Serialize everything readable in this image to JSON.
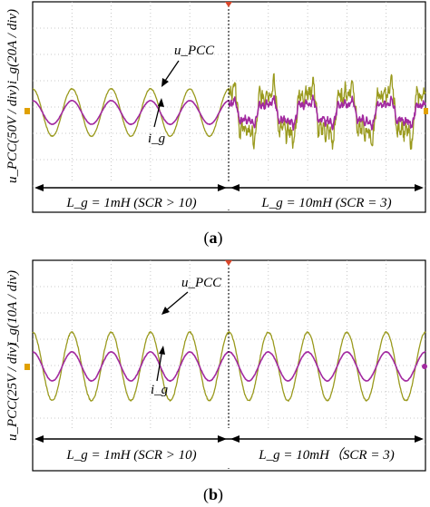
{
  "colors": {
    "voltage": "#9a9a1e",
    "current": "#a22aa0",
    "grid": "#b9b9b9",
    "marker_upper": "#e0a000",
    "marker_lower": "#d9462a",
    "frame": "#000000"
  },
  "chart_data": [
    {
      "type": "line",
      "panel": "(a)",
      "ylabel_left": "i_g(20A / div)",
      "ylabel_right": "u_PCC(50V / div)",
      "annotations": [
        "u_PCC",
        "i_g"
      ],
      "regions": [
        {
          "label": "L_g = 1mH (SCR > 10)",
          "x_range": [
            0,
            5
          ],
          "cycles": 5
        },
        {
          "label": "L_g = 10mH (SCR = 3)",
          "x_range": [
            5,
            10
          ],
          "cycles": 5
        }
      ],
      "x_divisions": 10,
      "y_divisions": 8,
      "grid": true,
      "series": [
        {
          "name": "u_PCC",
          "amplitude_div_before": 0.9,
          "amplitude_div_after": 1.25,
          "offset_div": 0,
          "distorted_after_switch": true
        },
        {
          "name": "i_g",
          "amplitude_div_before": 0.45,
          "amplitude_div_after": 0.55,
          "offset_div": 0,
          "distorted_after_switch": true
        }
      ]
    },
    {
      "type": "line",
      "panel": "(b)",
      "ylabel_left": "i_g(10A / div)",
      "ylabel_right": "u_PCC(25V / div)",
      "annotations": [
        "u_PCC",
        "i_g"
      ],
      "regions": [
        {
          "label": "L_g = 1mH (SCR > 10)",
          "x_range": [
            0,
            5
          ],
          "cycles": 5
        },
        {
          "label": "L_g = 10mH（SCR = 3)",
          "x_range": [
            5,
            10
          ],
          "cycles": 5
        }
      ],
      "x_divisions": 10,
      "y_divisions": 8,
      "grid": true,
      "series": [
        {
          "name": "u_PCC",
          "amplitude_div_before": 1.3,
          "amplitude_div_after": 1.3,
          "offset_div": 0,
          "distorted_after_switch": false
        },
        {
          "name": "i_g",
          "amplitude_div_before": 0.55,
          "amplitude_div_after": 0.55,
          "offset_div": 0,
          "distorted_after_switch": false
        }
      ]
    }
  ],
  "captions": {
    "a": "a",
    "b": "b"
  }
}
